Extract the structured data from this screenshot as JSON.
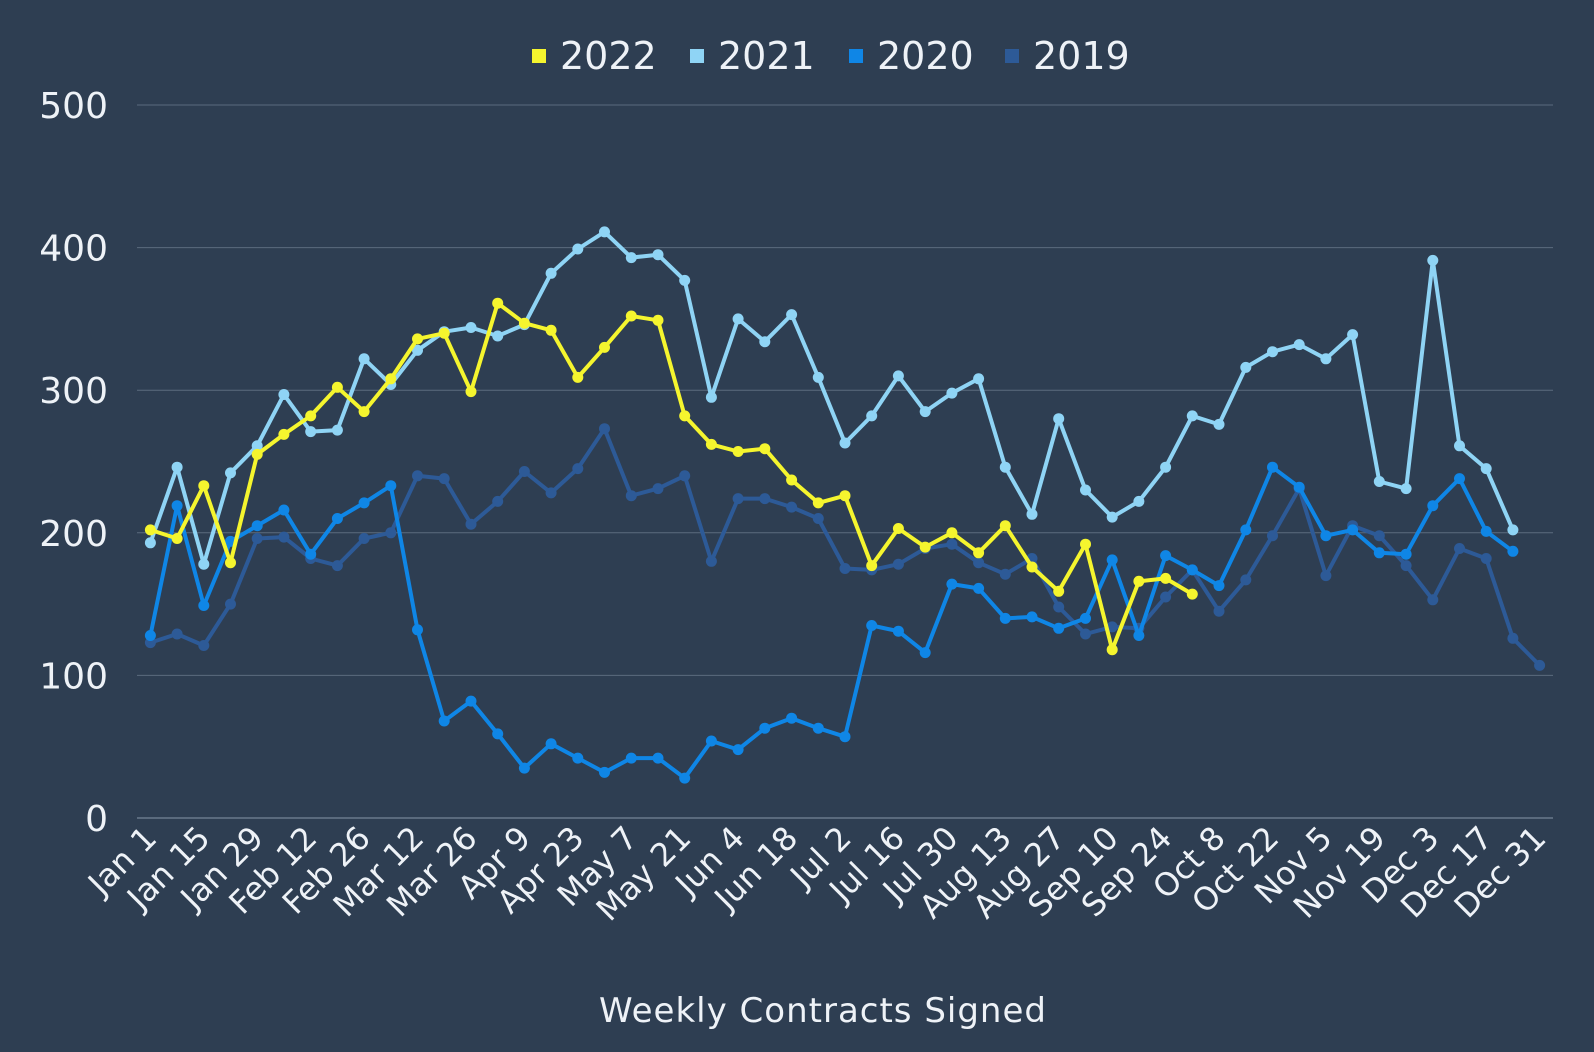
{
  "chart_data": {
    "type": "line",
    "title": "",
    "xlabel": "Weekly Contracts Signed",
    "ylabel": "",
    "ylim": [
      0,
      500
    ],
    "yticks": [
      0,
      100,
      200,
      300,
      400,
      500
    ],
    "grid": true,
    "legend_position": "top-center",
    "x_weeks": 53,
    "xtick_labels": [
      "Jan 1",
      "Jan 15",
      "Jan 29",
      "Feb 12",
      "Feb 26",
      "Mar 12",
      "Mar 26",
      "Apr 9",
      "Apr 23",
      "May 7",
      "May 21",
      "Jun 4",
      "Jun 18",
      "Jul 2",
      "Jul 16",
      "Jul 30",
      "Aug 13",
      "Aug 27",
      "Sep 10",
      "Sep 24",
      "Oct 8",
      "Oct 22",
      "Nov 5",
      "Nov 19",
      "Dec 3",
      "Dec 17",
      "Dec 31"
    ],
    "series": [
      {
        "name": "2022",
        "color": "#f5f52e",
        "values": [
          202,
          196,
          233,
          179,
          255,
          269,
          282,
          302,
          285,
          308,
          336,
          340,
          299,
          361,
          347,
          342,
          309,
          330,
          352,
          349,
          282,
          262,
          257,
          259,
          237,
          221,
          226,
          177,
          203,
          190,
          200,
          186,
          205,
          176,
          159,
          192,
          118,
          166,
          168,
          157
        ]
      },
      {
        "name": "2021",
        "color": "#8fd4f5",
        "values": [
          193,
          246,
          178,
          242,
          261,
          297,
          271,
          272,
          322,
          304,
          328,
          341,
          344,
          338,
          346,
          382,
          399,
          411,
          393,
          395,
          377,
          295,
          350,
          334,
          353,
          309,
          263,
          282,
          310,
          285,
          298,
          308,
          246,
          213,
          280,
          230,
          211,
          222,
          246,
          282,
          276,
          316,
          327,
          332,
          322,
          339,
          236,
          231,
          391,
          261,
          245,
          202
        ]
      },
      {
        "name": "2020",
        "color": "#0f86e6",
        "values": [
          128,
          219,
          149,
          194,
          205,
          216,
          185,
          210,
          221,
          233,
          132,
          68,
          82,
          59,
          35,
          52,
          42,
          32,
          42,
          42,
          28,
          54,
          48,
          63,
          70,
          63,
          57,
          135,
          131,
          116,
          164,
          161,
          140,
          141,
          133,
          140,
          181,
          128,
          184,
          174,
          163,
          202,
          246,
          232,
          198,
          202,
          186,
          185,
          219,
          238,
          201,
          187
        ]
      },
      {
        "name": "2019",
        "color": "#2d5a97",
        "values": [
          123,
          129,
          121,
          150,
          196,
          197,
          182,
          177,
          196,
          200,
          240,
          238,
          206,
          222,
          243,
          228,
          245,
          273,
          226,
          231,
          240,
          180,
          224,
          224,
          218,
          210,
          175,
          174,
          178,
          189,
          192,
          179,
          171,
          182,
          148,
          129,
          134,
          133,
          155,
          174,
          145,
          167,
          198,
          231,
          170,
          205,
          198,
          177,
          153,
          189,
          182,
          126,
          107
        ]
      }
    ]
  }
}
